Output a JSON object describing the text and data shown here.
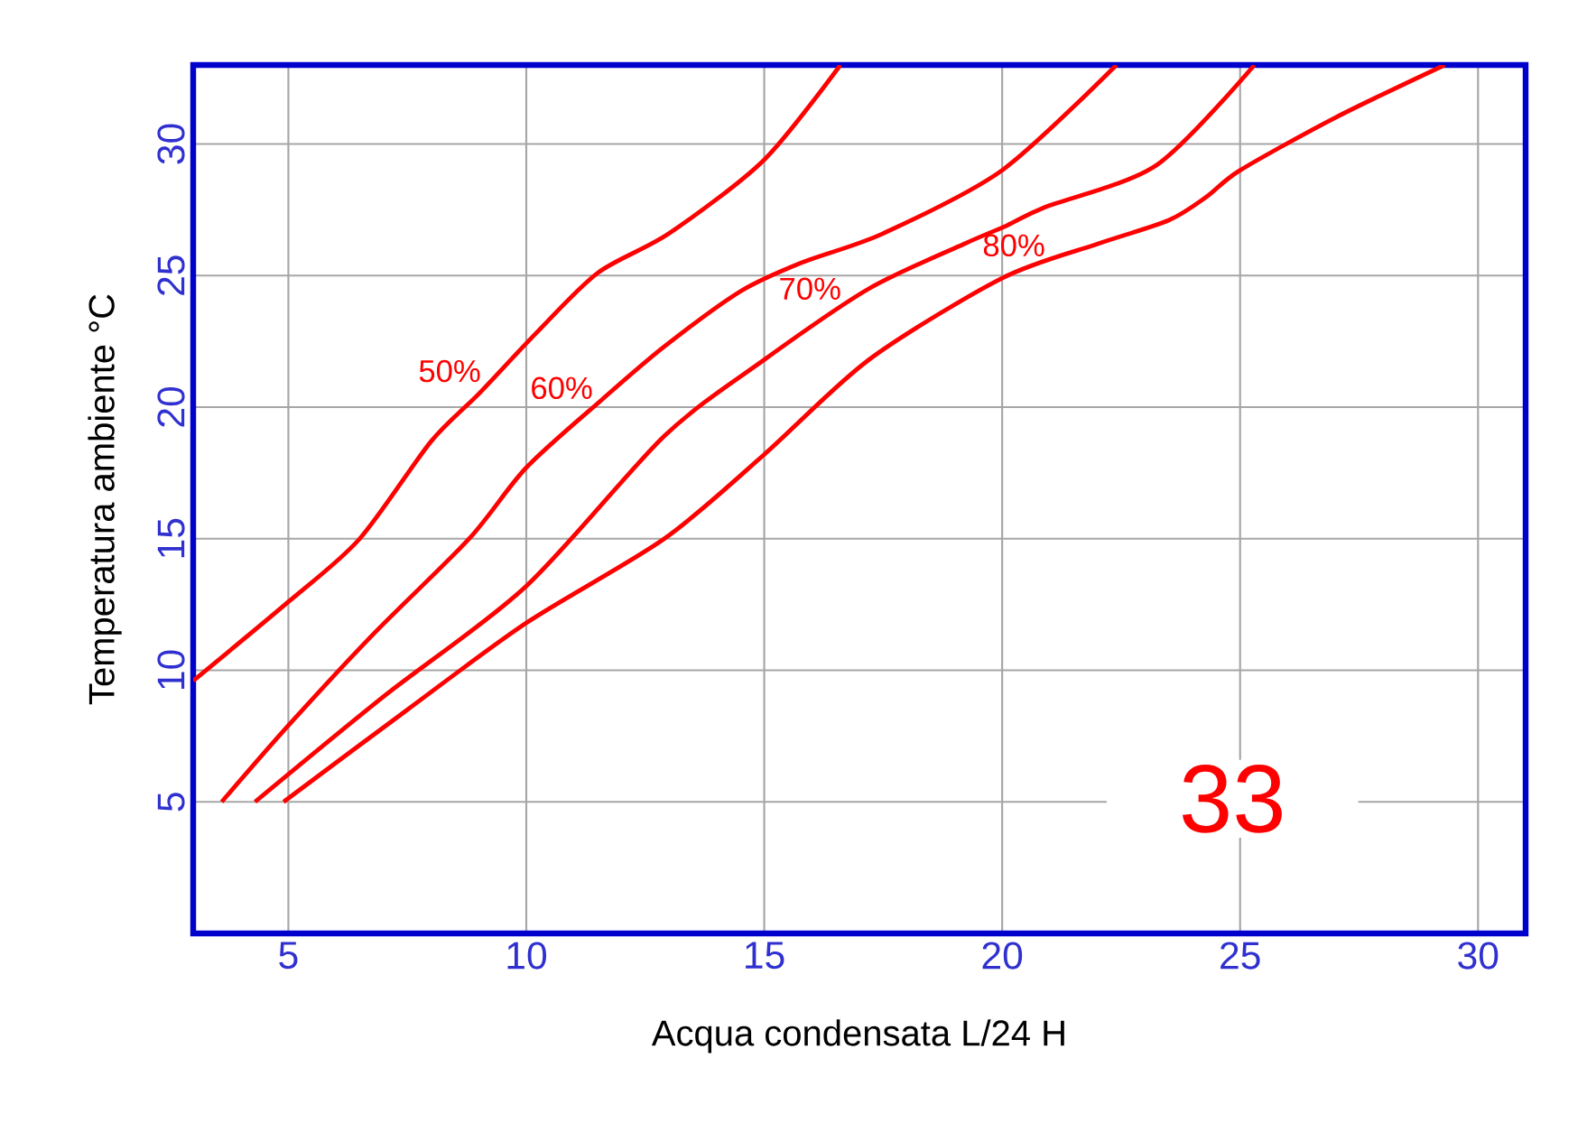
{
  "chart_data": {
    "type": "line",
    "xlabel": "Acqua condensata L/24 H",
    "ylabel": "Temperatura ambiente °C",
    "xlim": [
      3,
      31
    ],
    "ylim": [
      0,
      33
    ],
    "xticks": [
      5,
      10,
      15,
      20,
      25,
      30
    ],
    "yticks": [
      5,
      10,
      15,
      20,
      25,
      30
    ],
    "grid": true,
    "annotations": [
      "33"
    ],
    "series": [
      {
        "name": "50%",
        "color": "#ff0000",
        "x": [
          3,
          5,
          6.5,
          8,
          9,
          10.2,
          11.5,
          13,
          15,
          16.6
        ],
        "values": [
          9.6,
          12.6,
          15,
          18.7,
          20.5,
          22.8,
          25.1,
          26.6,
          29.4,
          33
        ]
      },
      {
        "name": "60%",
        "color": "#ff0000",
        "x": [
          3.6,
          5,
          6.8,
          8.8,
          10,
          11.6,
          12.9,
          14.5,
          15.8,
          17.5,
          20,
          22.4
        ],
        "values": [
          5,
          7.9,
          11.4,
          15,
          17.7,
          20.3,
          22.3,
          24.4,
          25.5,
          26.6,
          29,
          33
        ]
      },
      {
        "name": "70%",
        "color": "#ff0000",
        "x": [
          4.3,
          7,
          10,
          12.9,
          15,
          17.2,
          19.2,
          20.1,
          20.9,
          23.25,
          25.3
        ],
        "values": [
          5,
          9,
          13.2,
          18.9,
          21.8,
          24.5,
          26.2,
          26.9,
          27.6,
          29.2,
          33
        ]
      },
      {
        "name": "80%",
        "color": "#ff0000",
        "x": [
          4.9,
          7.5,
          10,
          12.9,
          15,
          17.2,
          20,
          22,
          23.5,
          24.3,
          25,
          27,
          29.3
        ],
        "values": [
          5,
          8.5,
          11.8,
          15,
          18.2,
          21.8,
          24.9,
          26.2,
          27.1,
          28,
          29,
          31,
          33
        ]
      }
    ]
  }
}
